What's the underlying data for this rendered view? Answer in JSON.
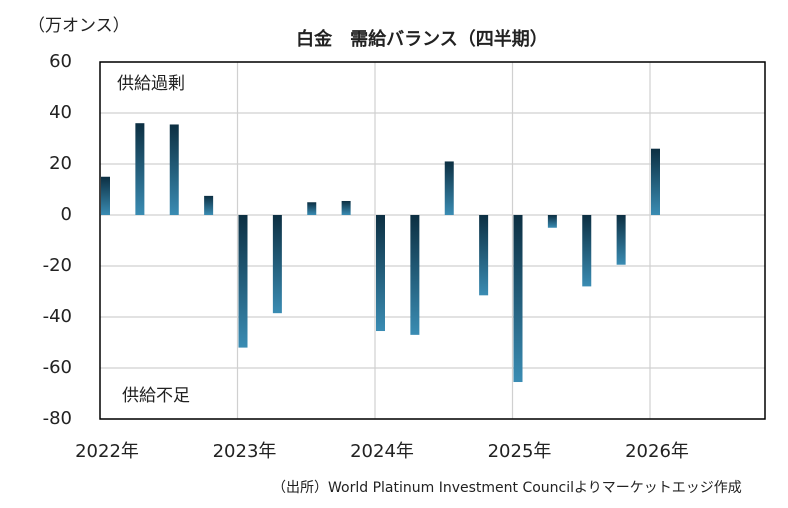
{
  "chart_data": {
    "type": "bar",
    "title": "白金　需給バランス（四半期）",
    "unit_label": "（万オンス）",
    "annotations": [
      "供給過剰",
      "供給不足"
    ],
    "source": "（出所）World Platinum Investment Councilよりマーケットエッジ作成",
    "categories": [
      "2022年",
      null,
      null,
      null,
      "2023年",
      null,
      null,
      null,
      "2024年",
      null,
      null,
      null,
      "2025年",
      null,
      null,
      null,
      "2026年",
      null,
      null,
      null
    ],
    "values": [
      15,
      36,
      35.5,
      7.5,
      -52,
      -38.5,
      5,
      5.5,
      -45.5,
      -47,
      21,
      -31.5,
      -65.5,
      -5,
      -28,
      -19.5,
      26,
      null,
      null,
      null
    ],
    "color": "#3a8cb3",
    "ylim": [
      -80,
      60
    ],
    "yticks": [
      -80,
      -60,
      -40,
      -20,
      0,
      20,
      40,
      60
    ],
    "negative_tick_color": "#e00000",
    "grid": true
  }
}
